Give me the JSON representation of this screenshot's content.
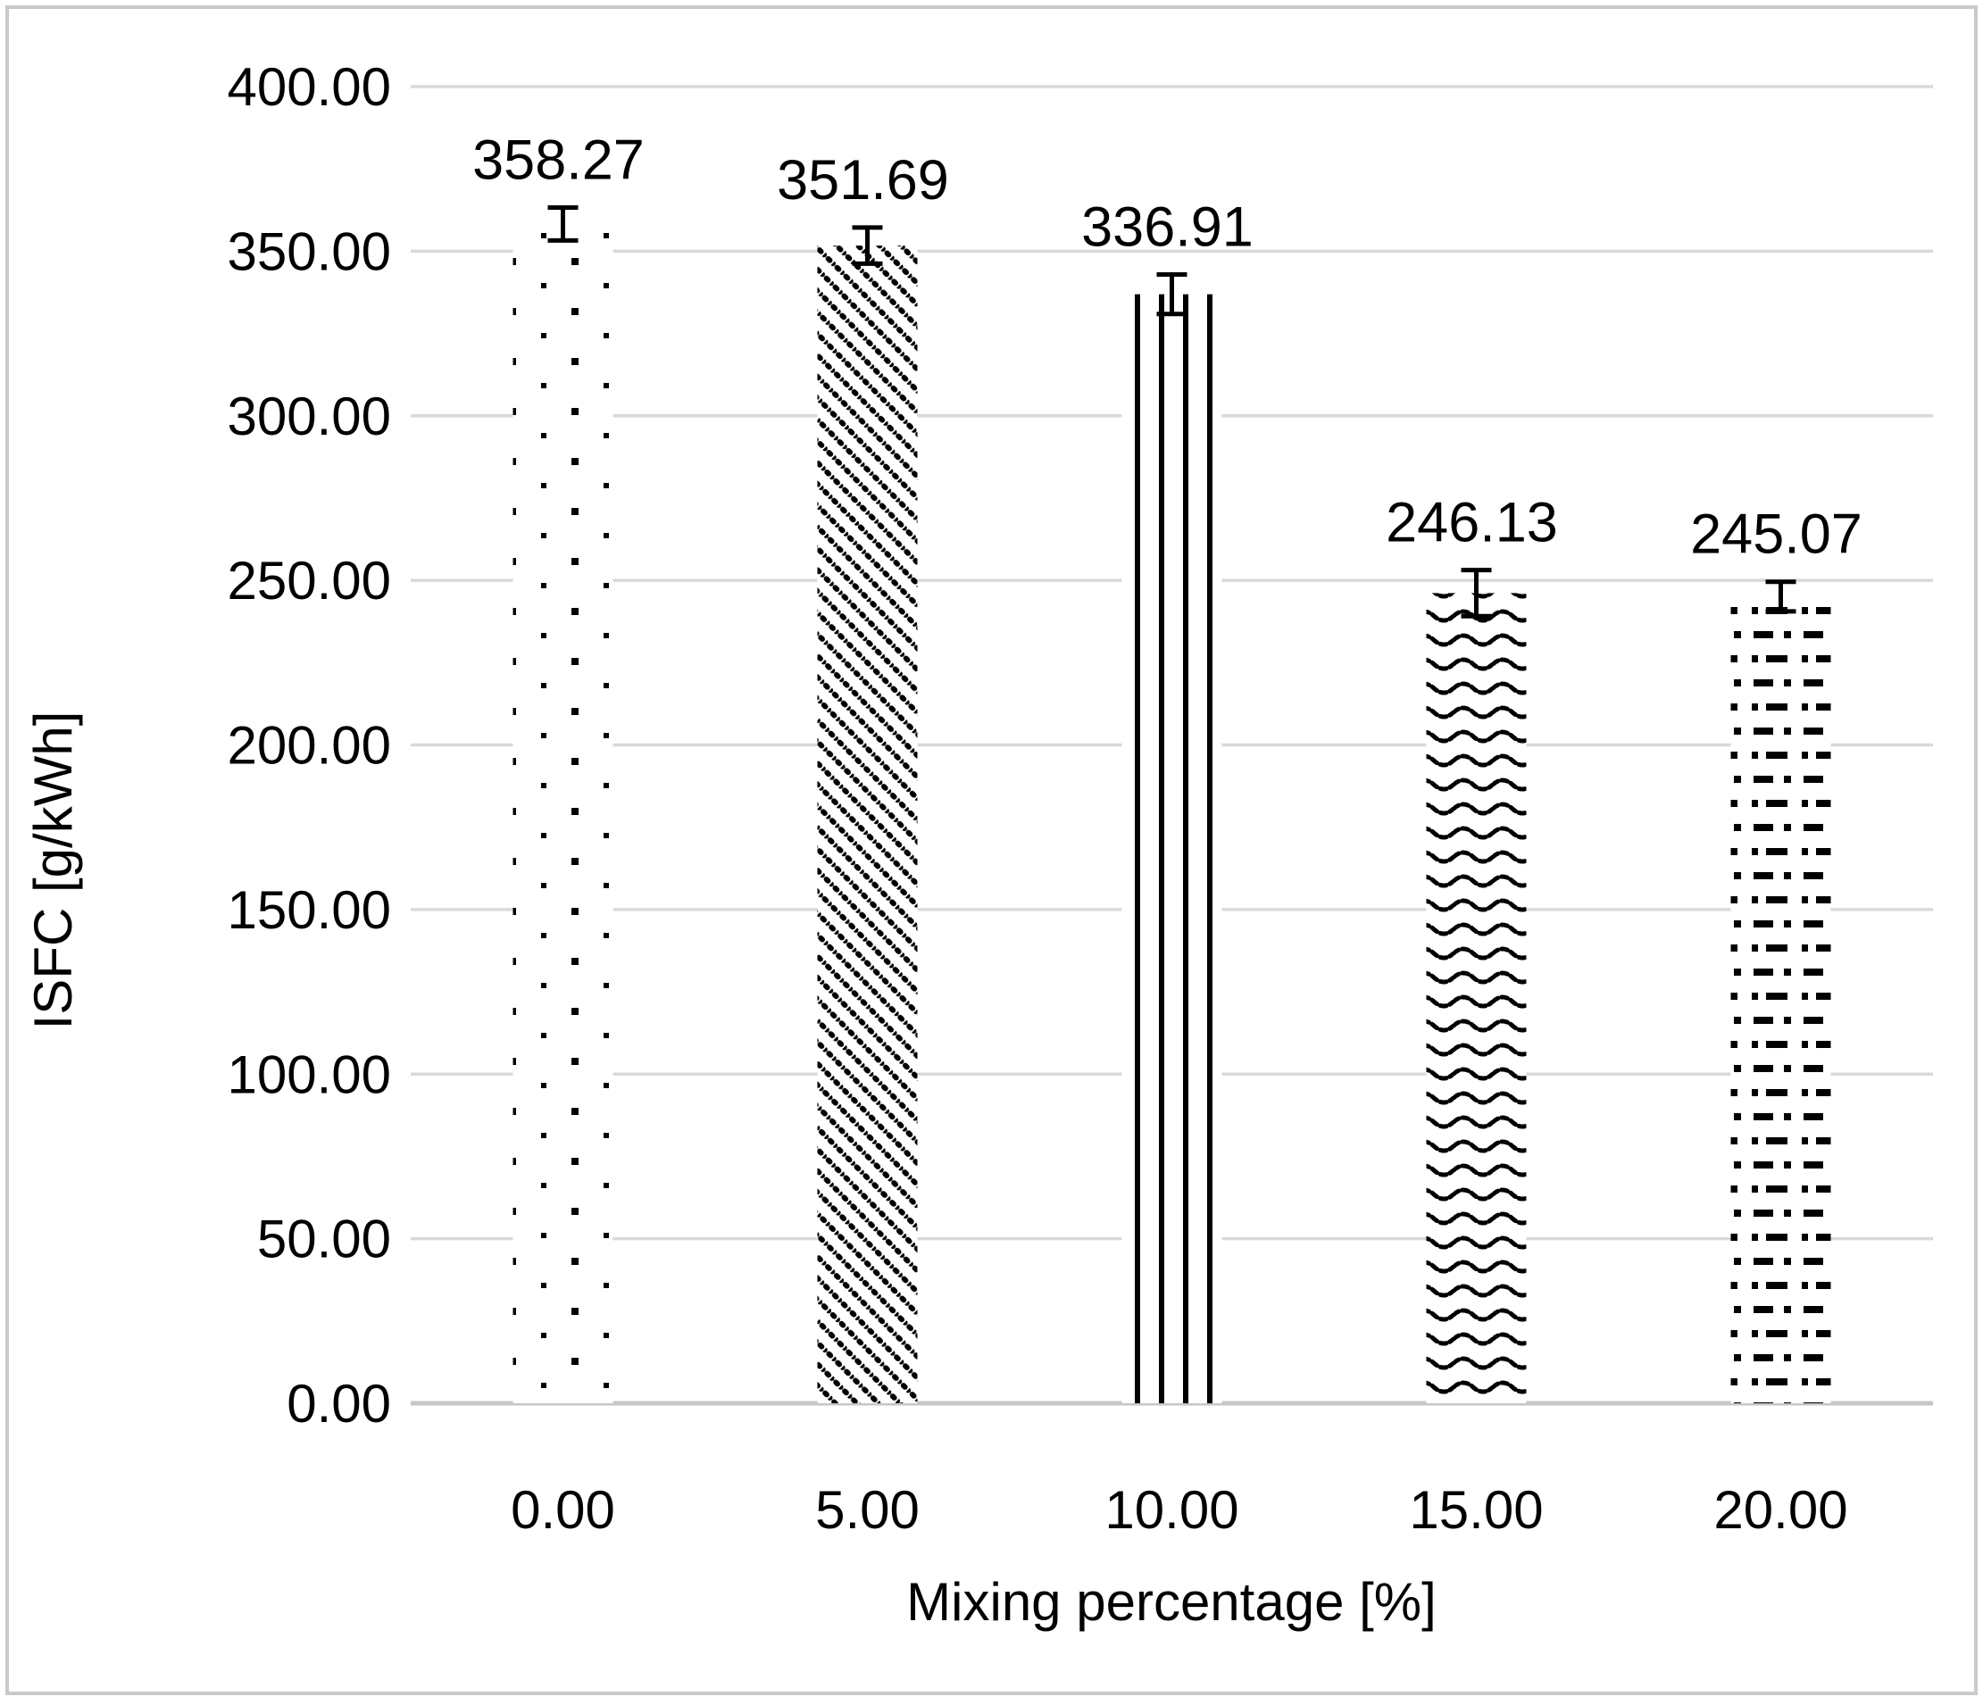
{
  "chart_data": {
    "type": "bar",
    "title": "",
    "xlabel": "Mixing percentage [%]",
    "ylabel": "ISFC [g/kWh]",
    "categories": [
      "0.00",
      "5.00",
      "10.00",
      "15.00",
      "20.00"
    ],
    "values": [
      358.27,
      351.69,
      336.91,
      246.13,
      245.07
    ],
    "value_labels": [
      "358.27",
      "351.69",
      "336.91",
      "246.13",
      "245.07"
    ],
    "error_bar_half_height_est_units": [
      5,
      5.5,
      6,
      7,
      4.5
    ],
    "ylim": [
      0,
      400
    ],
    "ytick_step": 50,
    "ytick_labels": [
      "0.00",
      "50.00",
      "100.00",
      "150.00",
      "200.00",
      "250.00",
      "300.00",
      "350.00",
      "400.00"
    ],
    "grid": true,
    "gridlines": "horizontal",
    "legend_position": "none",
    "bar_fill_patterns": [
      "sparse-dots",
      "diagonal-dashed",
      "vertical-stripes",
      "horizontal-waves",
      "dash-dot-rows"
    ],
    "colors": {
      "pattern_ink": "#000000",
      "bar_background": "#ffffff",
      "gridline": "#d9d9d9",
      "baseline": "#c6c6c6",
      "figure_border": "#c9c9c9",
      "background": "#ffffff"
    }
  }
}
